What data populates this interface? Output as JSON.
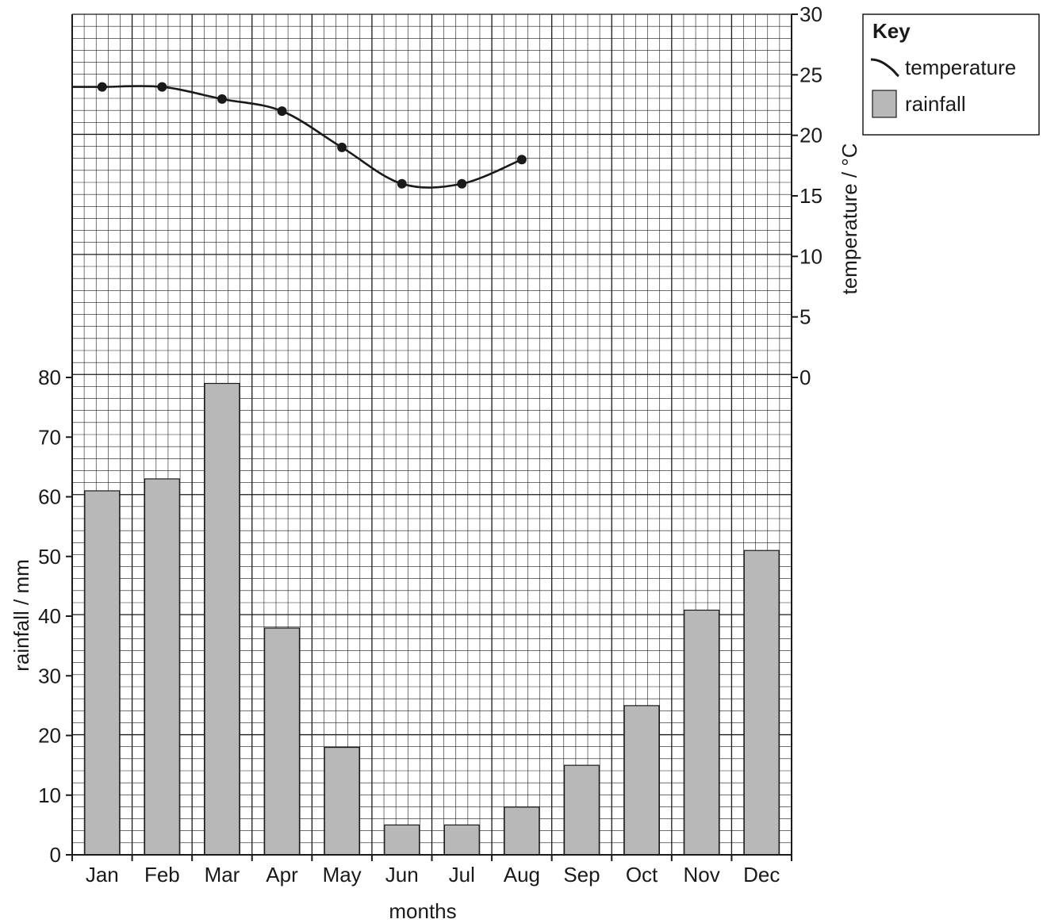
{
  "chart_data": {
    "type": "bar",
    "xlabel": "months",
    "categories": [
      "Jan",
      "Feb",
      "Mar",
      "Apr",
      "May",
      "Jun",
      "Jul",
      "Aug",
      "Sep",
      "Oct",
      "Nov",
      "Dec"
    ],
    "series": [
      {
        "name": "rainfall",
        "type": "bar",
        "axis": "left",
        "values": [
          61,
          63,
          79,
          38,
          18,
          5,
          5,
          8,
          15,
          25,
          41,
          51
        ]
      },
      {
        "name": "temperature",
        "type": "line",
        "axis": "right",
        "values": [
          24,
          24,
          23,
          22,
          19,
          16,
          16,
          18,
          null,
          null,
          null,
          null
        ]
      }
    ],
    "left_axis": {
      "label": "rainfall / mm",
      "range": [
        0,
        80
      ],
      "ticks": [
        "0",
        "10",
        "20",
        "30",
        "40",
        "50",
        "60",
        "70",
        "80"
      ]
    },
    "right_axis": {
      "label": "temperature / °C",
      "range": [
        0,
        30
      ],
      "ticks": [
        "0",
        "5",
        "10",
        "15",
        "20",
        "25",
        "30"
      ]
    },
    "grid": true,
    "legend": {
      "title": "Key",
      "placement": "top-right",
      "items": [
        {
          "label": "temperature",
          "symbol": "line"
        },
        {
          "label": "rainfall",
          "symbol": "bar"
        }
      ]
    },
    "colors": {
      "bar_fill": "#b8b8b8",
      "line": "#1a1a1a",
      "grid_minor": "#1a1a1a",
      "grid_major": "#1a1a1a"
    }
  }
}
